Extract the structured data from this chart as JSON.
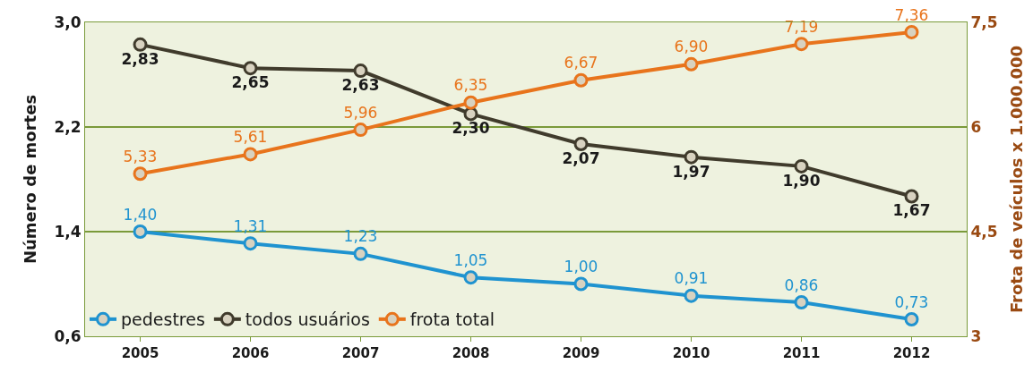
{
  "chart_data": {
    "type": "line",
    "ylabel": "Número de mortes",
    "y2label": "Frota de veículos x 1.000.000",
    "categories": [
      "2005",
      "2006",
      "2007",
      "2008",
      "2009",
      "2010",
      "2011",
      "2012"
    ],
    "series": [
      {
        "name": "pedestres",
        "color": "#1f93d0",
        "values": [
          1.4,
          1.31,
          1.23,
          1.05,
          1.0,
          0.91,
          0.86,
          0.73
        ],
        "value_labels": [
          "1,40",
          "1,31",
          "1,23",
          "1,05",
          "1,00",
          "0,91",
          "0,86",
          "0,73"
        ]
      },
      {
        "name": "todos usuários",
        "color": "#403b2c",
        "values": [
          2.83,
          2.65,
          2.63,
          2.3,
          2.07,
          1.97,
          1.9,
          1.67
        ],
        "value_labels": [
          "2,83",
          "2,65",
          "2,63",
          "2,30",
          "2,07",
          "1,97",
          "1,90",
          "1,67"
        ]
      },
      {
        "name": "frota total",
        "color": "#e8741c",
        "axis": "y2",
        "values": [
          5.33,
          5.61,
          5.96,
          6.35,
          6.67,
          6.9,
          7.19,
          7.36
        ],
        "value_labels": [
          "5,33",
          "5,61",
          "5,96",
          "6,35",
          "6,67",
          "6,90",
          "7,19",
          "7,36"
        ]
      }
    ],
    "ylim": [
      0.6,
      3.0
    ],
    "yticks": [
      {
        "value": 0.6,
        "label": "0,6"
      },
      {
        "value": 1.4,
        "label": "1,4"
      },
      {
        "value": 2.2,
        "label": "2,2"
      },
      {
        "value": 3.0,
        "label": "3,0"
      }
    ],
    "y2lim": [
      3,
      7.5
    ],
    "y2ticks": [
      3,
      {
        "value": 4.5,
        "label": "4,5"
      },
      6,
      {
        "value": 7.5,
        "label": "7,5"
      }
    ],
    "grid": "y",
    "legend": "bottom left",
    "marker": "circle",
    "line_style": "solid"
  }
}
